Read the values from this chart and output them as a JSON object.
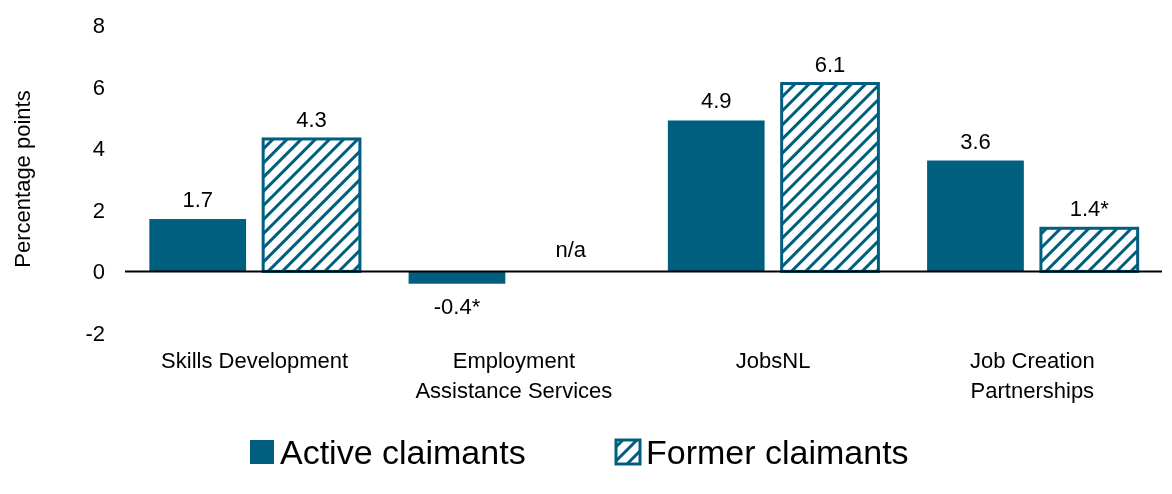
{
  "chart_data": {
    "type": "bar",
    "ylabel": "Percentage points",
    "categories": [
      "Skills Development",
      "Employment Assistance Services",
      "JobsNL",
      "Job Creation Partnerships"
    ],
    "series": [
      {
        "name": "Active claimants",
        "color": "#005f7f",
        "values": [
          1.7,
          -0.4,
          4.9,
          3.6
        ],
        "value_labels": [
          "1.7",
          "-0.4*",
          "4.9",
          "3.6"
        ]
      },
      {
        "name": "Former claimants",
        "color": "#005f7f",
        "values": [
          4.3,
          null,
          6.1,
          1.4
        ],
        "value_labels": [
          "4.3",
          "n/a",
          "6.1",
          "1.4*"
        ]
      }
    ],
    "ylim": [
      -2,
      8
    ],
    "yticks": [
      -2,
      0,
      2,
      4,
      6,
      8
    ],
    "legend": "bottom"
  }
}
